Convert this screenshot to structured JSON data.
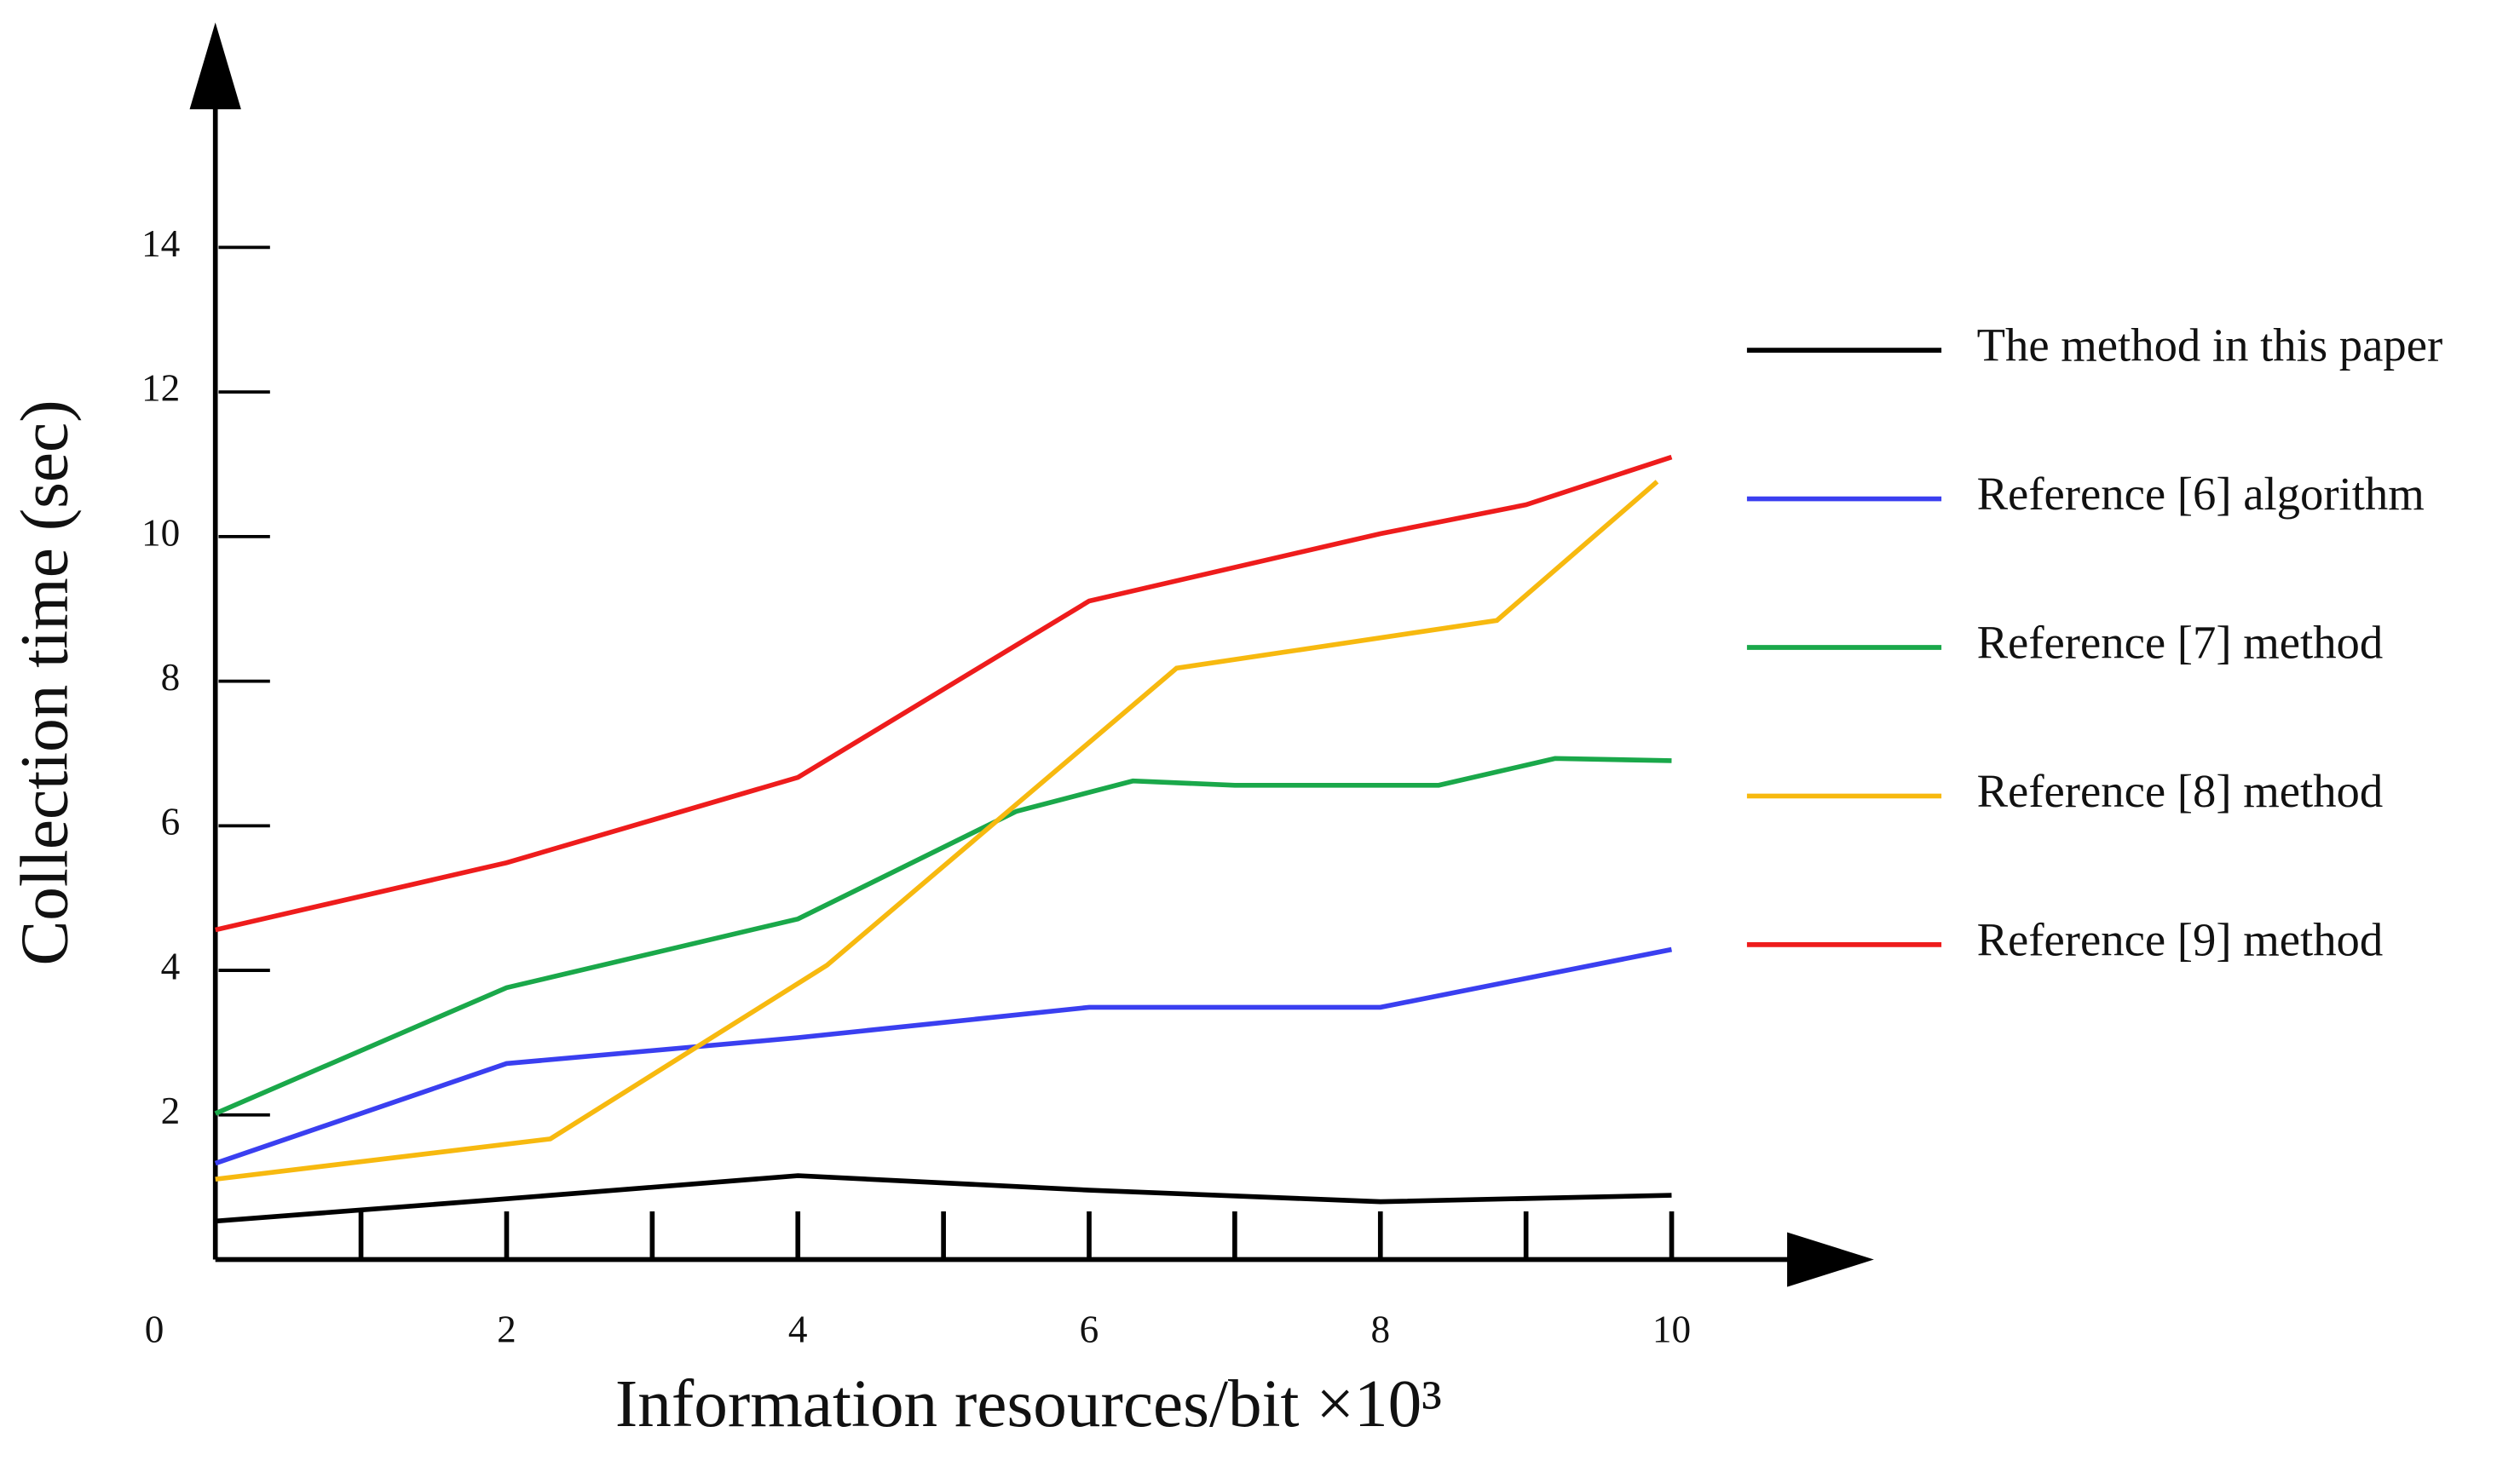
{
  "chart_data": {
    "type": "line",
    "xlabel": "Information resources/bit ×10³",
    "ylabel": "Collection time (sec)",
    "xlim": [
      0,
      11.4
    ],
    "ylim": [
      0,
      17
    ],
    "xticks": [
      0,
      2,
      4,
      6,
      8,
      10
    ],
    "xminor_ticks": [
      1,
      3,
      5,
      7,
      9
    ],
    "yticks": [
      2,
      4,
      6,
      8,
      10,
      12,
      14
    ],
    "series": [
      {
        "name": "The method in this paper",
        "color": "#000000",
        "x": [
          0,
          2,
          4,
          6,
          8,
          10
        ],
        "values": [
          0.53,
          0.84,
          1.16,
          0.96,
          0.8,
          0.89
        ]
      },
      {
        "name": "Reference [6] algorithm",
        "color": "#3a3ff0",
        "x": [
          0,
          2,
          4,
          6,
          8,
          10
        ],
        "values": [
          1.33,
          2.71,
          3.07,
          3.49,
          3.49,
          4.29
        ]
      },
      {
        "name": "Reference [7] method",
        "color": "#1aa84a",
        "x": [
          0,
          2,
          4,
          5.5,
          6.3,
          7,
          8.4,
          9.2,
          10
        ],
        "values": [
          2.02,
          3.76,
          4.71,
          6.2,
          6.62,
          6.56,
          6.56,
          6.93,
          6.9
        ]
      },
      {
        "name": "Reference [8] method",
        "color": "#f7b90f",
        "x": [
          0,
          2.3,
          4.2,
          6.6,
          8.8,
          9.9
        ],
        "values": [
          1.11,
          1.67,
          4.07,
          8.18,
          8.84,
          10.76
        ]
      },
      {
        "name": "Reference [9] method",
        "color": "#ee1c1c",
        "x": [
          0,
          2,
          4,
          6,
          8,
          9,
          10
        ],
        "values": [
          4.56,
          5.49,
          6.67,
          9.11,
          10.04,
          10.44,
          11.1
        ]
      }
    ]
  }
}
